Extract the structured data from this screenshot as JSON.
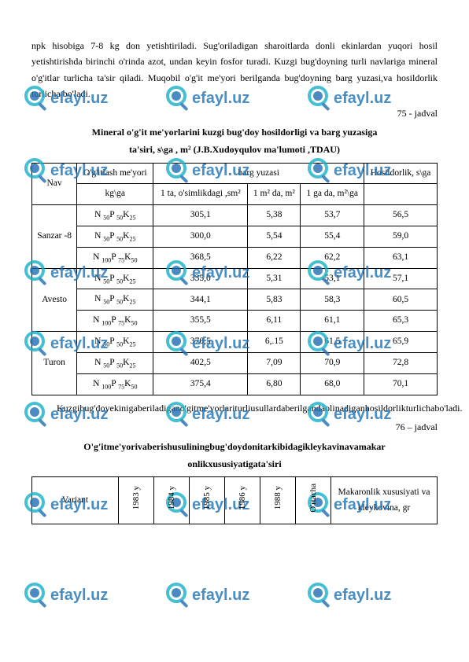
{
  "paragraph": "npk hisobiga 7-8 kg don yetishtiriladi. Sug'oriladigan sharoitlarda donli ekinlardan yuqori hosil yetishtirishda birinchi o'rinda azot, undan keyin fosfor turadi. Kuzgi bug'doyning turli navlariga mineral o'g'itlar turlicha ta'sir qiladi. Muqobil o'g'it me'yori berilganda bug'doyning barg yuzasi,va hosildorlik turlicha bo'ladi.",
  "jadval75": "75 - jadval",
  "title75a": "Mineral o'g'it me'yorlarini kuzgi bug'doy hosildorligi va barg yuzasiga",
  "title75b": "ta'siri, s\\ga , m² (J.B.Xudoyqulov ma'lumoti ,TDAU)",
  "t1": {
    "h_nav": "Nav",
    "h_ogitlash": "O'g'itlash me'yori",
    "h_barg": "barg yuzasi",
    "h_hos": "Hosildorlik, s\\ga",
    "h_kgga": "kg\\ga",
    "h_bitta": "1 ta, o'simlikdagi ,sm²",
    "h_1m2": "1 m² da, m²",
    "h_1ga": "1 ga da, m²\\ga",
    "rows": [
      {
        "nav": "Sanzar -8",
        "f": "N ₅₀P ₅₀K₂₅",
        "v1": "305,1",
        "v2": "5,38",
        "v3": "53,7",
        "v4": "56,5"
      },
      {
        "nav": "",
        "f": "N ₅₀P ₅₀K₂₅",
        "v1": "300,0",
        "v2": "5,54",
        "v3": "55,4",
        "v4": "59,0"
      },
      {
        "nav": "",
        "f": "N ₁₀₀P ₇₅K₅₀",
        "v1": "368,5",
        "v2": "6,22",
        "v3": "62,2",
        "v4": "63,1"
      },
      {
        "nav": "Avesto",
        "f": "N ₅₀P ₅₀K₂₅",
        "v1": "335,0",
        "v2": "5,31",
        "v3": "53,1",
        "v4": "57,1"
      },
      {
        "nav": "",
        "f": "N ₅₀P ₅₀K₂₅",
        "v1": "344,1",
        "v2": "5,83",
        "v3": "58,3",
        "v4": "60,5"
      },
      {
        "nav": "",
        "f": "N ₁₀₀P ₇₅K₅₀",
        "v1": "355,5",
        "v2": "6,11",
        "v3": "61,1",
        "v4": "65,3"
      },
      {
        "nav": "Turon",
        "f": "N ₅₀P ₅₀K₂₅",
        "v1": "370,5",
        "v2": "6,.15",
        "v3": "61,5",
        "v4": "65,9"
      },
      {
        "nav": "",
        "f": "N ₅₀P ₅₀K₂₅",
        "v1": "402,5",
        "v2": "7,09",
        "v3": "70,9",
        "v4": "72,8"
      },
      {
        "nav": "",
        "f": "N ₁₀₀P ₇₅K₅₀",
        "v1": "375,4",
        "v2": "6,80",
        "v3": "68,0",
        "v4": "70,1"
      }
    ]
  },
  "para2": "Kuzgibug'doyekinigaberiladigano'gitme'yorlariturliusullardaberilgandaolinadiganhosildorlikturlichabo'ladi.",
  "jadval76": "76 – jadval",
  "title76a": "O'g'itme'yorivaberishusuliningbug'doydonitarkibidagikleykavinavamakar",
  "title76b": "onlikxususiyatigata'siri",
  "t2": {
    "c1": "Variant",
    "c2": "1983 y",
    "c3": "1984 y",
    "c4": "1985 y",
    "c5": "1986 y",
    "c6": "1988 y",
    "c7": "O'rtacha",
    "c8": "Makaronlik xususiyati va kleykovina, gr"
  },
  "watermark_text": "efayl.uz",
  "watermark_color_ring": "#17b1c9",
  "watermark_color_lens": "#1f6fb2",
  "watermark_color_text": "#1a74b8"
}
